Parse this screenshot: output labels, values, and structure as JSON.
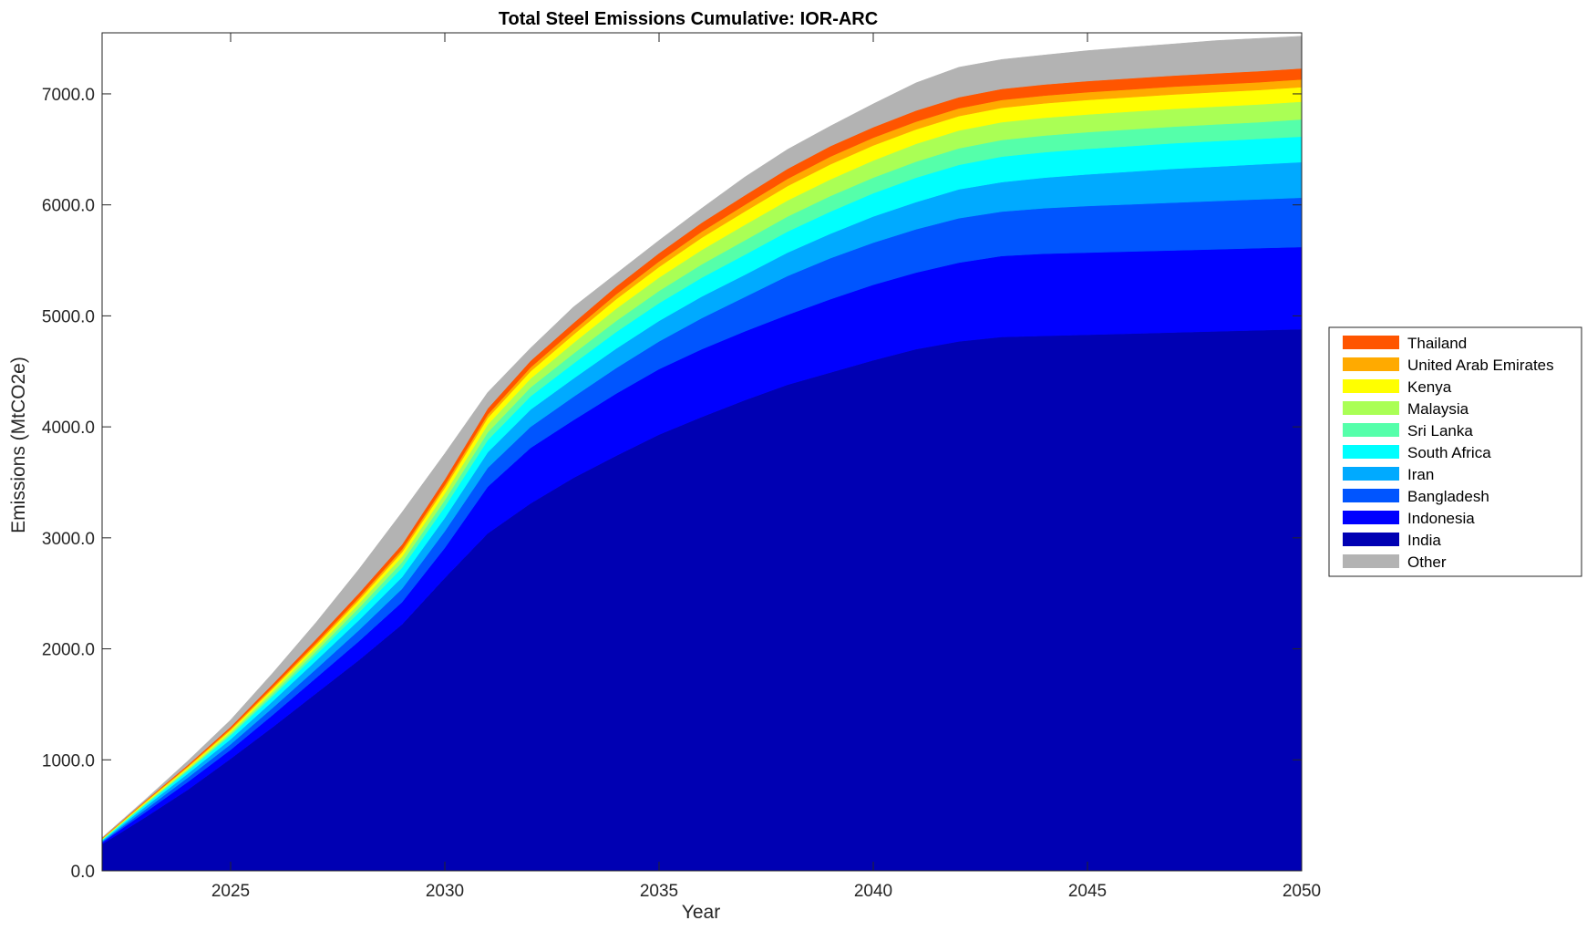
{
  "chart_data": {
    "type": "area",
    "stacked": true,
    "title": "Total Steel Emissions Cumulative: IOR-ARC",
    "xlabel": "Year",
    "ylabel": "Emissions (MtCO2e)",
    "xlim": [
      2022,
      2050
    ],
    "ylim": [
      0,
      7550
    ],
    "x_ticks": [
      2025,
      2030,
      2035,
      2040,
      2045,
      2050
    ],
    "x_tick_labels": [
      "2025",
      "2030",
      "2035",
      "2040",
      "2045",
      "2050"
    ],
    "y_ticks": [
      0,
      1000,
      2000,
      3000,
      4000,
      5000,
      6000,
      7000
    ],
    "y_tick_labels": [
      "0.0",
      "1000.0",
      "2000.0",
      "3000.0",
      "4000.0",
      "5000.0",
      "6000.0",
      "7000.0"
    ],
    "grid": false,
    "legend_position": "outside-right",
    "x": [
      2022,
      2023,
      2024,
      2025,
      2026,
      2027,
      2028,
      2029,
      2030,
      2031,
      2032,
      2033,
      2034,
      2035,
      2036,
      2037,
      2038,
      2039,
      2040,
      2041,
      2042,
      2043,
      2044,
      2045,
      2046,
      2047,
      2048,
      2049,
      2050
    ],
    "cumulative_top": [
      300,
      640,
      990,
      1360,
      1790,
      2240,
      2720,
      3230,
      3760,
      4310,
      4710,
      5080,
      5380,
      5680,
      5970,
      6250,
      6500,
      6710,
      6910,
      7100,
      7240,
      7310,
      7350,
      7390,
      7420,
      7450,
      7480,
      7500,
      7520
    ],
    "series": [
      {
        "name": "India",
        "color": "#0000b3",
        "values": [
          240,
          480,
          730,
          1010,
          1300,
          1600,
          1900,
          2220,
          2640,
          3040,
          3310,
          3540,
          3740,
          3930,
          4090,
          4240,
          4380,
          4490,
          4600,
          4700,
          4770,
          4810,
          4820,
          4830,
          4840,
          4850,
          4860,
          4870,
          4880
        ]
      },
      {
        "name": "Indonesia",
        "color": "#0000ff",
        "values": [
          15,
          45,
          70,
          80,
          110,
          140,
          170,
          200,
          270,
          420,
          500,
          520,
          560,
          590,
          610,
          620,
          630,
          660,
          680,
          690,
          710,
          730,
          740,
          740,
          740,
          740,
          740,
          740,
          740
        ]
      },
      {
        "name": "Bangladesh",
        "color": "#0055ff",
        "values": [
          8,
          25,
          40,
          50,
          65,
          80,
          100,
          120,
          150,
          170,
          190,
          210,
          230,
          250,
          280,
          310,
          350,
          370,
          380,
          390,
          400,
          400,
          410,
          420,
          425,
          430,
          435,
          440,
          445
        ]
      },
      {
        "name": "Iran",
        "color": "#00aaff",
        "values": [
          8,
          25,
          35,
          45,
          60,
          75,
          90,
          105,
          120,
          140,
          155,
          165,
          175,
          185,
          195,
          200,
          210,
          220,
          235,
          245,
          260,
          265,
          275,
          285,
          295,
          305,
          310,
          315,
          320
        ]
      },
      {
        "name": "South Africa",
        "color": "#00ffff",
        "values": [
          7,
          18,
          25,
          35,
          45,
          55,
          70,
          85,
          100,
          110,
          120,
          135,
          150,
          160,
          170,
          180,
          190,
          200,
          210,
          220,
          220,
          230,
          230,
          230,
          230,
          230,
          230,
          230,
          230
        ]
      },
      {
        "name": "Sri Lanka",
        "color": "#55ffaa",
        "values": [
          3,
          7,
          10,
          15,
          22,
          30,
          40,
          50,
          60,
          70,
          80,
          90,
          100,
          110,
          120,
          130,
          135,
          140,
          140,
          145,
          150,
          150,
          150,
          150,
          150,
          150,
          150,
          150,
          155
        ]
      },
      {
        "name": "Malaysia",
        "color": "#aaff55",
        "values": [
          4,
          9,
          13,
          18,
          25,
          32,
          40,
          50,
          60,
          70,
          80,
          95,
          110,
          120,
          130,
          140,
          145,
          150,
          155,
          160,
          160,
          160,
          160,
          160,
          160,
          160,
          160,
          160,
          160
        ]
      },
      {
        "name": "Kenya",
        "color": "#ffff00",
        "values": [
          3,
          7,
          10,
          15,
          20,
          25,
          32,
          40,
          50,
          60,
          65,
          75,
          85,
          95,
          110,
          120,
          130,
          135,
          135,
          130,
          130,
          130,
          130,
          130,
          130,
          130,
          130,
          130,
          130
        ]
      },
      {
        "name": "United Arab Emirates",
        "color": "#ffaa00",
        "values": [
          3,
          6,
          9,
          12,
          15,
          18,
          22,
          25,
          28,
          30,
          35,
          40,
          45,
          50,
          55,
          60,
          65,
          70,
          70,
          70,
          70,
          70,
          70,
          70,
          70,
          70,
          70,
          70,
          70
        ]
      },
      {
        "name": "Thailand",
        "color": "#ff5500",
        "values": [
          4,
          7,
          12,
          18,
          28,
          35,
          40,
          45,
          50,
          55,
          60,
          65,
          70,
          75,
          80,
          85,
          90,
          95,
          95,
          100,
          100,
          100,
          100,
          100,
          100,
          100,
          100,
          100,
          100
        ]
      },
      {
        "name": "Other",
        "color": "#b3b3b3",
        "values": [
          5,
          11,
          36,
          62,
          100,
          150,
          216,
          290,
          232,
          145,
          115,
          145,
          115,
          115,
          130,
          165,
          175,
          180,
          210,
          250,
          270,
          265,
          265,
          275,
          280,
          285,
          295,
          295,
          290
        ]
      }
    ],
    "legend_order": [
      "Thailand",
      "United Arab Emirates",
      "Kenya",
      "Malaysia",
      "Sri Lanka",
      "South Africa",
      "Iran",
      "Bangladesh",
      "Indonesia",
      "India",
      "Other"
    ]
  }
}
